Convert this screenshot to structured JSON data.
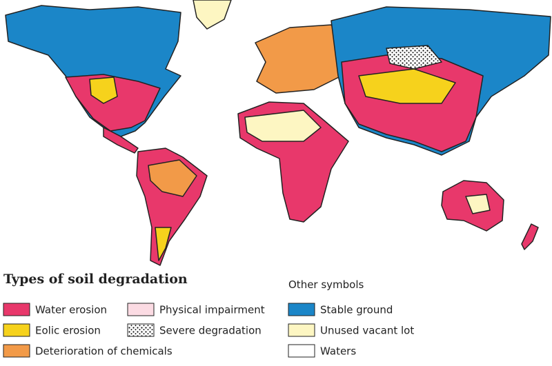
{
  "legend": {
    "title": "Types of soil degradation",
    "items": [
      {
        "label": "Water erosion",
        "color": "#e8386b"
      },
      {
        "label": "Eolic erosion",
        "color": "#f6d21c"
      },
      {
        "label": "Deterioration of chemicals",
        "color": "#f29a48"
      },
      {
        "label": "Physical impairment",
        "color": "#fbdbe3"
      },
      {
        "label": "Severe degradation",
        "pattern": "dots"
      }
    ]
  },
  "other_symbols": {
    "title": "Other symbols",
    "items": [
      {
        "label": "Stable ground",
        "color": "#1b86c8"
      },
      {
        "label": "Unused vacant lot",
        "color": "#fdf6c2"
      },
      {
        "label": "Waters",
        "color": "#ffffff"
      }
    ]
  }
}
